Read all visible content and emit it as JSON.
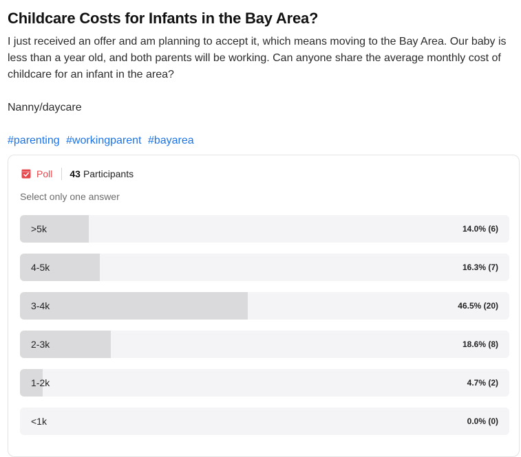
{
  "post": {
    "title": "Childcare Costs for Infants in the Bay Area?",
    "body": "I just received an offer and am planning to accept it, which means moving to the Bay Area. Our baby is less than a year old, and both parents will be working. Can anyone share the average monthly cost of childcare for an infant in the area?",
    "subline": "Nanny/daycare",
    "tags": [
      "#parenting",
      "#workingparent",
      "#bayarea"
    ]
  },
  "poll": {
    "label": "Poll",
    "icon": "poll-icon",
    "accent_color": "#e5484d",
    "participants_count": "43",
    "participants_label": "Participants",
    "instruction": "Select only one answer",
    "options": [
      {
        "label": ">5k",
        "result": "14.0% (6)",
        "percent": 14.0
      },
      {
        "label": "4-5k",
        "result": "16.3% (7)",
        "percent": 16.3
      },
      {
        "label": "3-4k",
        "result": "46.5% (20)",
        "percent": 46.5
      },
      {
        "label": "2-3k",
        "result": "18.6% (8)",
        "percent": 18.6
      },
      {
        "label": "1-2k",
        "result": "4.7% (2)",
        "percent": 4.7
      },
      {
        "label": "<1k",
        "result": "0.0% (0)",
        "percent": 0.0
      }
    ]
  }
}
